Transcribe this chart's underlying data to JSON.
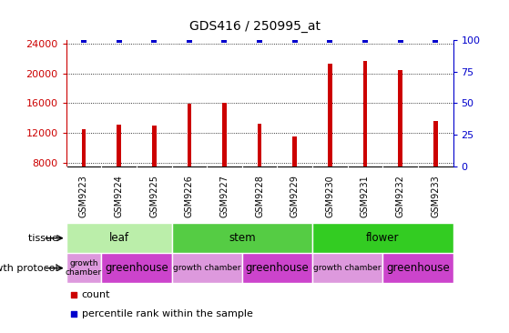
{
  "title": "GDS416 / 250995_at",
  "samples": [
    "GSM9223",
    "GSM9224",
    "GSM9225",
    "GSM9226",
    "GSM9227",
    "GSM9228",
    "GSM9229",
    "GSM9230",
    "GSM9231",
    "GSM9232",
    "GSM9233"
  ],
  "counts": [
    12500,
    13100,
    13000,
    15900,
    16000,
    13200,
    11500,
    21300,
    21700,
    20400,
    13600
  ],
  "percentiles": [
    100,
    100,
    100,
    100,
    100,
    100,
    100,
    100,
    100,
    100,
    100
  ],
  "ylim_left": [
    7500,
    24500
  ],
  "ylim_right": [
    0,
    100
  ],
  "yticks_left": [
    8000,
    12000,
    16000,
    20000,
    24000
  ],
  "yticks_right": [
    0,
    25,
    50,
    75,
    100
  ],
  "bar_color": "#cc0000",
  "percentile_color": "#0000cc",
  "tissue_groups": [
    {
      "label": "leaf",
      "start": 0,
      "end": 3,
      "color": "#bbeeaa"
    },
    {
      "label": "stem",
      "start": 3,
      "end": 7,
      "color": "#55cc44"
    },
    {
      "label": "flower",
      "start": 7,
      "end": 11,
      "color": "#33cc22"
    }
  ],
  "growth_groups": [
    {
      "label": "growth\nchamber",
      "start": 0,
      "end": 1,
      "color": "#dd99dd"
    },
    {
      "label": "greenhouse",
      "start": 1,
      "end": 3,
      "color": "#cc44cc"
    },
    {
      "label": "growth chamber",
      "start": 3,
      "end": 5,
      "color": "#dd99dd"
    },
    {
      "label": "greenhouse",
      "start": 5,
      "end": 7,
      "color": "#cc44cc"
    },
    {
      "label": "growth chamber",
      "start": 7,
      "end": 9,
      "color": "#dd99dd"
    },
    {
      "label": "greenhouse",
      "start": 9,
      "end": 11,
      "color": "#cc44cc"
    }
  ],
  "tissue_label": "tissue",
  "growth_label": "growth protocol",
  "legend_count_label": "count",
  "legend_percentile_label": "percentile rank within the sample",
  "background_color": "#ffffff",
  "grid_color": "#000000",
  "label_row_color": "#cccccc",
  "tick_color_left": "#cc0000",
  "tick_color_right": "#0000cc"
}
